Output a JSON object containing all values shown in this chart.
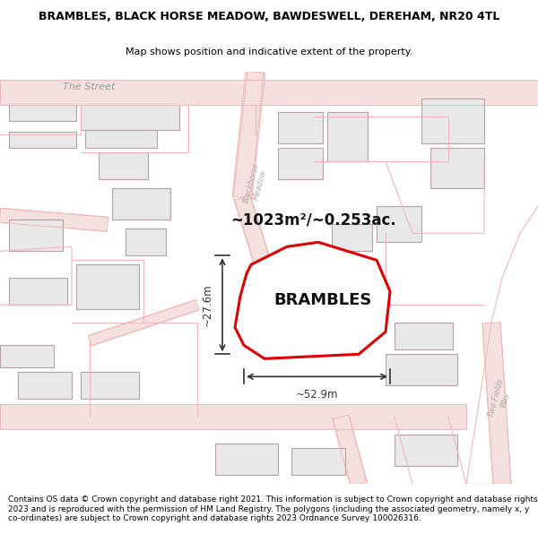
{
  "title": "BRAMBLES, BLACK HORSE MEADOW, BAWDESWELL, DEREHAM, NR20 4TL",
  "subtitle": "Map shows position and indicative extent of the property.",
  "area_text": "~1023m²/~0.253ac.",
  "property_name": "BRAMBLES",
  "dim_width": "~52.9m",
  "dim_height": "~27.6m",
  "footer": "Contains OS data © Crown copyright and database right 2021. This information is subject to Crown copyright and database rights 2023 and is reproduced with the permission of HM Land Registry. The polygons (including the associated geometry, namely x, y co-ordinates) are subject to Crown copyright and database rights 2023 Ordnance Survey 100026316.",
  "bg_color": "#ffffff",
  "map_bg": "#ffffff",
  "road_color": "#f0b8b8",
  "road_fill": "#f5e0e0",
  "property_fill": "#ffffff",
  "property_edge": "#dd0000",
  "building_fill": "#e8e8e8",
  "building_edge": "#b8a0a0",
  "title_fontsize": 9.0,
  "subtitle_fontsize": 8.0,
  "footer_fontsize": 6.5,
  "property_name_fontsize": 13,
  "area_text_fontsize": 12,
  "label_color": "#aaaaaa",
  "dim_color": "#333333"
}
